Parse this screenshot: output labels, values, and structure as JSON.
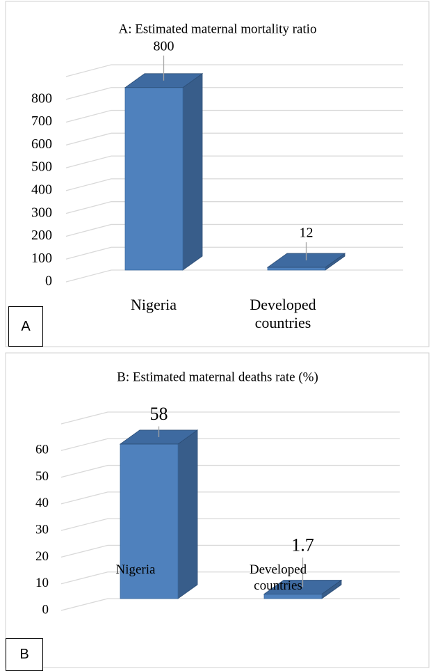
{
  "chart_data": [
    {
      "type": "bar",
      "label": "A",
      "title": "A: Estimated maternal mortality ratio",
      "categories": [
        "Nigeria",
        "Developed countries"
      ],
      "values": [
        800,
        12
      ],
      "color": "#4f81bd",
      "ylim": [
        0,
        900
      ],
      "yticks": [
        0,
        100,
        200,
        300,
        400,
        500,
        600,
        700,
        800
      ],
      "grid": true
    },
    {
      "type": "bar",
      "label": "B",
      "title": "B: Estimated maternal deaths rate (%)",
      "categories": [
        "Nigeria",
        "Developed countries"
      ],
      "values": [
        58,
        1.7
      ],
      "color": "#4f81bd",
      "ylim": [
        0,
        70
      ],
      "yticks": [
        0,
        10,
        20,
        30,
        40,
        50,
        60
      ],
      "grid": true
    }
  ]
}
